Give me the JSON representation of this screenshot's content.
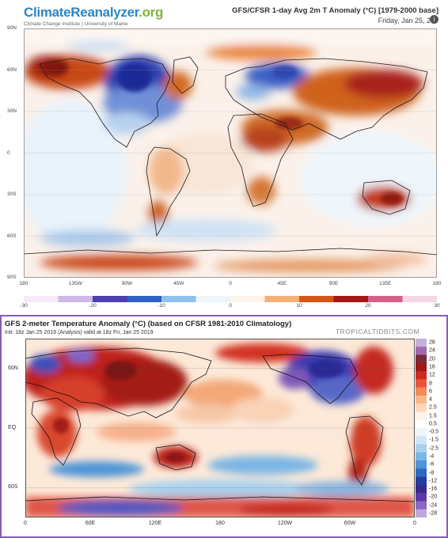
{
  "top": {
    "brand_main": "ClimateReanalyzer",
    "brand_org": ".org",
    "brand_sub": "Climate Change Institute | University of Maine",
    "title": "GFS/CFSR 1-day Avg 2m T Anomaly (°C) [1979-2000 base]",
    "date": "Friday, Jan 25, 2",
    "info_icon": "info-icon",
    "lat_labels": [
      "90N",
      "60N",
      "30N",
      "0",
      "30S",
      "60S",
      "90S"
    ],
    "lon_labels": [
      "180",
      "135W",
      "90W",
      "45W",
      "0",
      "45E",
      "90E",
      "135E",
      "180"
    ],
    "colorbar_labels": [
      "-30",
      "-20",
      "-10",
      "0",
      "10",
      "20",
      "30"
    ],
    "colorbar_colors": [
      "#f4eaf8",
      "#cdb8e6",
      "#4c3fb0",
      "#2e62c8",
      "#8fc1ec",
      "#eef6fc",
      "#fdf4ec",
      "#f5b078",
      "#d65516",
      "#a31a14",
      "#d5608a",
      "#f7d6e4"
    ]
  },
  "bottom": {
    "title": "GFS 2-meter Temperature Anomaly (°C) (based on CFSR 1981-2010 Climatology)",
    "init": "Init: 18z Jan 25 2019  (Analysis)  valid at 18z Fri, Jan 25 2019",
    "site": "TROPICALTIDBITS.COM",
    "lat_labels": [
      "60N",
      "EQ",
      "60S"
    ],
    "lon_labels": [
      "0",
      "60E",
      "120E",
      "180",
      "120W",
      "60W",
      "0"
    ],
    "colorbar_labels": [
      "28",
      "24",
      "20",
      "16",
      "12",
      "8",
      "6",
      "4",
      "2.5",
      "1.5",
      "0.5",
      "-0.5",
      "-1.5",
      "-2.5",
      "-4",
      "-6",
      "-8",
      "-12",
      "-16",
      "-20",
      "-24",
      "-28"
    ],
    "colorbar_colors": [
      "#c8b0d8",
      "#a06ab0",
      "#7a2a3a",
      "#a01818",
      "#cc2a22",
      "#e6553a",
      "#f28a5a",
      "#f8b88a",
      "#fcd8b8",
      "#fff4e8",
      "#ffffff",
      "#eef6fc",
      "#cfe6f6",
      "#a8d2ee",
      "#7bb6e4",
      "#4e94d6",
      "#2f68c4",
      "#213f9e",
      "#3a2a8e",
      "#5a3aa8",
      "#8a6ac2",
      "#c0a8dc"
    ]
  }
}
